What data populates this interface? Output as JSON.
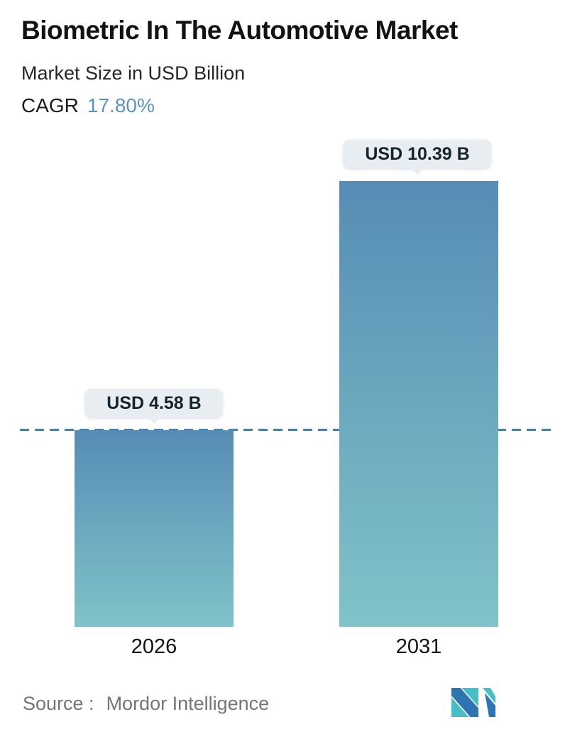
{
  "header": {
    "title": "Biometric In The Automotive Market",
    "subtitle": "Market Size in USD Billion",
    "cagr_label": "CAGR",
    "cagr_value": "17.80%"
  },
  "chart_data": {
    "type": "bar",
    "title": "Biometric In The Automotive Market",
    "subtitle": "Market Size in USD Billion",
    "unit": "USD Billion",
    "cagr_pct": 17.8,
    "categories": [
      "2026",
      "2031"
    ],
    "values": [
      4.58,
      10.39
    ],
    "value_labels": [
      "USD 4.58 B",
      "USD 10.39 B"
    ],
    "ylim": [
      0,
      10.39
    ],
    "baseline": {
      "value": 4.58,
      "style": "dashed"
    },
    "legend": "none",
    "grid": "off",
    "colors": {
      "bar_gradient_top": "#578cb5",
      "bar_gradient_bottom": "#80c3c8",
      "dashed_line": "#4a7ea8",
      "cagr_accent": "#5b93c5",
      "callout_bg": "#e8edf1"
    }
  },
  "footer": {
    "source_label": "Source :",
    "source_value": "Mordor Intelligence",
    "logo": {
      "name": "mordor-intelligence-logo",
      "teal": "#48bec7",
      "blue": "#2c74b2"
    }
  }
}
